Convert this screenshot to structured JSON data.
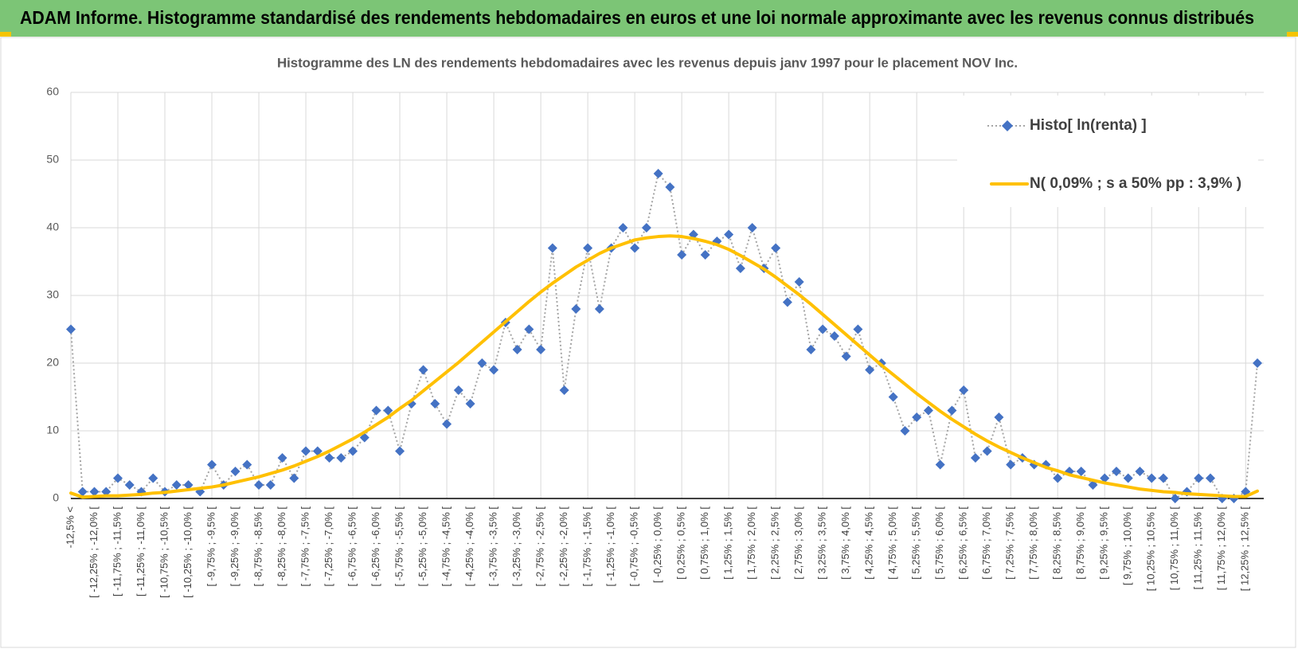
{
  "header": {
    "title": "ADAM Informe. Histogramme standardisé des rendements hebdomadaires en euros et une loi normale approximante avec les revenus connus distribués"
  },
  "chart_data": {
    "type": "line",
    "title": "Histogramme des LN des rendements hebdomadaires avec les revenus depuis janv 1997 pour le placement NOV Inc.",
    "categories": [
      "-12,5% <",
      null,
      "[ -12,25% ; -12,0% [",
      null,
      "[ -11,75% ; -11,5% [",
      null,
      "[ -11,25% ; -11,0% [",
      null,
      "[ -10,75% ; -10,5% [",
      null,
      "[ -10,25% ; -10,0% [",
      null,
      "[ -9,75% ; -9,5% [",
      null,
      "[ -9,25% ; -9,0% [",
      null,
      "[ -8,75% ; -8,5% [",
      null,
      "[ -8,25% ; -8,0% [",
      null,
      "[ -7,75% ; -7,5% [",
      null,
      "[ -7,25% ; -7,0% [",
      null,
      "[ -6,75% ; -6,5% [",
      null,
      "[ -6,25% ; -6,0% [",
      null,
      "[ -5,75% ; -5,5% [",
      null,
      "[ -5,25% ; -5,0% [",
      null,
      "[ -4,75% ; -4,5% [",
      null,
      "[ -4,25% ; -4,0% [",
      null,
      "[ -3,75% ; -3,5% [",
      null,
      "[ -3,25% ; -3,0% [",
      null,
      "[ -2,75% ; -2,5% [",
      null,
      "[ -2,25% ; -2,0% [",
      null,
      "[ -1,75% ; -1,5% [",
      null,
      "[ -1,25% ; -1,0% [",
      null,
      "[ -0,75% ; -0,5% [",
      null,
      "[ -0,25% ; 0,0% [",
      null,
      "[ 0,25% ; 0,5% [",
      null,
      "[ 0,75% ; 1,0% [",
      null,
      "[ 1,25% ; 1,5% [",
      null,
      "[ 1,75% ; 2,0% [",
      null,
      "[ 2,25% ; 2,5% [",
      null,
      "[ 2,75% ; 3,0% [",
      null,
      "[ 3,25% ; 3,5% [",
      null,
      "[ 3,75% ; 4,0% [",
      null,
      "[ 4,25% ; 4,5% [",
      null,
      "[ 4,75% ; 5,0% [",
      null,
      "[ 5,25% ; 5,5% [",
      null,
      "[ 5,75% ; 6,0% [",
      null,
      "[ 6,25% ; 6,5% [",
      null,
      "[ 6,75% ; 7,0% [",
      null,
      "[ 7,25% ; 7,5% [",
      null,
      "[ 7,75% ; 8,0% [",
      null,
      "[ 8,25% ; 8,5% [",
      null,
      "[ 8,75% ; 9,0% [",
      null,
      "[ 9,25% ; 9,5% [",
      null,
      "[ 9,75% ; 10,0% [",
      null,
      "[ 10,25% ; 10,5% [",
      null,
      "[ 10,75% ; 11,0% [",
      null,
      "[ 11,25% ; 11,5% [",
      null,
      "[ 11,75% ; 12,0% [",
      null,
      "[ 12,25% ; 12,5% [",
      null
    ],
    "series": [
      {
        "name": "Histo[ ln(renta) ]",
        "color": "#4472c4",
        "line_color": "#a5a5a5",
        "marker": "diamond",
        "values": [
          25,
          1,
          1,
          1,
          3,
          2,
          1,
          3,
          1,
          2,
          2,
          1,
          5,
          2,
          4,
          5,
          2,
          2,
          6,
          3,
          7,
          7,
          6,
          6,
          7,
          9,
          13,
          13,
          7,
          14,
          19,
          14,
          11,
          16,
          14,
          20,
          19,
          26,
          22,
          25,
          22,
          37,
          16,
          28,
          37,
          28,
          37,
          40,
          37,
          40,
          48,
          46,
          36,
          39,
          36,
          38,
          39,
          34,
          40,
          34,
          37,
          29,
          32,
          22,
          25,
          24,
          21,
          25,
          19,
          20,
          15,
          10,
          12,
          13,
          5,
          13,
          16,
          6,
          7,
          12,
          5,
          6,
          5,
          5,
          3,
          4,
          4,
          2,
          3,
          4,
          3,
          4,
          3,
          3,
          0,
          1,
          3,
          3,
          0,
          0,
          1,
          20
        ]
      },
      {
        "name": "N( 0,09% ; s a 50% pp : 3,9% )",
        "color": "#ffc000",
        "values": [
          0.8,
          0.2,
          0.3,
          0.4,
          0.4,
          0.5,
          0.6,
          0.8,
          0.9,
          1.1,
          1.3,
          1.5,
          1.7,
          2.0,
          2.4,
          2.8,
          3.2,
          3.7,
          4.2,
          4.8,
          5.5,
          6.2,
          7.0,
          7.9,
          8.8,
          9.8,
          10.9,
          12.0,
          13.3,
          14.5,
          15.9,
          17.3,
          18.7,
          20.1,
          21.6,
          23.1,
          24.6,
          26.1,
          27.6,
          29.1,
          30.5,
          31.8,
          33.0,
          34.2,
          35.2,
          36.2,
          37.0,
          37.6,
          38.2,
          38.5,
          38.7,
          38.8,
          38.7,
          38.4,
          38.0,
          37.5,
          36.8,
          35.9,
          34.9,
          33.9,
          32.7,
          31.4,
          30.1,
          28.7,
          27.2,
          25.7,
          24.2,
          22.7,
          21.2,
          19.7,
          18.3,
          16.9,
          15.5,
          14.2,
          12.9,
          11.7,
          10.6,
          9.5,
          8.5,
          7.6,
          6.8,
          6.0,
          5.3,
          4.6,
          4.1,
          3.5,
          3.1,
          2.7,
          2.3,
          2.0,
          1.7,
          1.4,
          1.2,
          1.0,
          0.9,
          0.7,
          0.6,
          0.5,
          0.4,
          0.3,
          0.3,
          1.1
        ]
      }
    ],
    "ylim": [
      0,
      60
    ],
    "yticks": [
      0,
      10,
      20,
      30,
      40,
      50,
      60
    ],
    "grid": true,
    "legend": "upper right"
  }
}
